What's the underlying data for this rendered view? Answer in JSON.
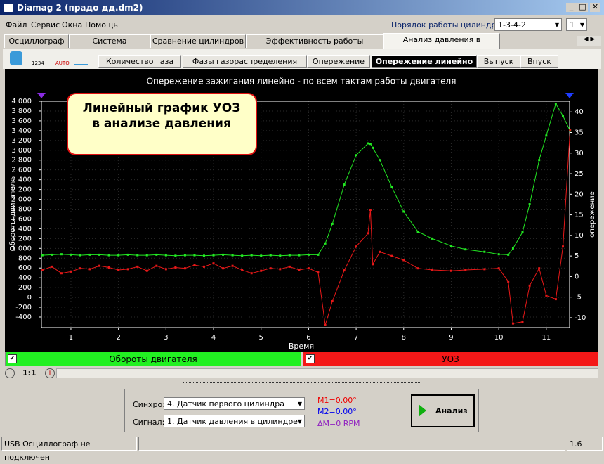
{
  "window": {
    "title": "Diamag 2 (прадо дд.dm2)",
    "menu": [
      "Файл",
      "Сервис",
      "Окна",
      "Помощь"
    ],
    "cylinder_order_label": "Порядок работы цилиндров",
    "cylinder_order": "1-3-4-2",
    "cylinder_count": "1",
    "tabs": [
      "Осциллограф",
      "Система зажигания",
      "Сравнение цилиндров",
      "Эффективность работы цилиндров",
      "Анализ давления в цилиндре"
    ],
    "toolbar_labels": [
      "1234",
      "AUTO"
    ],
    "subtabs": [
      "Количество газа",
      "Фазы газораспределения",
      "Опережение",
      "Опережение линейно",
      "Выпуск",
      "Впуск"
    ],
    "zoom": "1:1",
    "sync_label": "Синхро:",
    "sync_value": "4.  Датчик первого цилиндра",
    "signal_label": "Сигнал:",
    "signal_value": "1.  Датчик давления в цилиндре",
    "markers": [
      "M1=0.00°",
      "M2=0.00°",
      "ΔM=0 RPM"
    ],
    "analyze_button": "Анализ",
    "status": [
      "USB Осциллограф не подключен",
      "1.6"
    ]
  },
  "chart_data": {
    "type": "line",
    "title": "Опережение зажигания линейно - по всем тактам работы двигателя",
    "xlabel": "Время",
    "ylabel": "Обороты двигателя",
    "y2label": "опережение",
    "annotation": [
      "Линейный график УОЗ",
      "в анализе давления"
    ],
    "x": [
      0.4,
      0.6,
      0.8,
      1.0,
      1.2,
      1.4,
      1.6,
      1.8,
      2.0,
      2.2,
      2.4,
      2.6,
      2.8,
      3.0,
      3.2,
      3.4,
      3.6,
      3.8,
      4.0,
      4.2,
      4.4,
      4.6,
      4.8,
      5.0,
      5.2,
      5.4,
      5.6,
      5.8,
      6.0,
      6.2,
      6.35,
      6.5,
      6.75,
      7.0,
      7.25,
      7.3,
      7.35,
      7.5,
      7.75,
      8.0,
      8.3,
      8.6,
      9.0,
      9.3,
      9.7,
      10.0,
      10.2,
      10.3,
      10.5,
      10.65,
      10.85,
      11.0,
      11.2,
      11.35,
      11.5
    ],
    "xlim": [
      0.38,
      11.49
    ],
    "xticks": [
      1,
      2,
      3,
      4,
      5,
      6,
      7,
      8,
      9,
      10,
      11
    ],
    "ylim": [
      -615,
      4000
    ],
    "yticks": [
      {
        "value": 4000,
        "label": "4 000"
      },
      {
        "value": 3800,
        "label": "3 800"
      },
      {
        "value": 3600,
        "label": "3 600"
      },
      {
        "value": 3400,
        "label": "3 400"
      },
      {
        "value": 3200,
        "label": "3 200"
      },
      {
        "value": 3000,
        "label": "3 000"
      },
      {
        "value": 2800,
        "label": "2 800"
      },
      {
        "value": 2600,
        "label": "2 600"
      },
      {
        "value": 2400,
        "label": "2 400"
      },
      {
        "value": 2200,
        "label": "2 200"
      },
      {
        "value": 2000,
        "label": "2 000"
      },
      {
        "value": 1800,
        "label": "1 800"
      },
      {
        "value": 1600,
        "label": "1 600"
      },
      {
        "value": 1400,
        "label": "1 400"
      },
      {
        "value": 1200,
        "label": "1 200"
      },
      {
        "value": 1000,
        "label": "1 000"
      },
      800,
      600,
      400,
      200,
      0,
      -200,
      -400
    ],
    "y2lim": [
      -12.4,
      42.6
    ],
    "y2ticks": [
      40,
      35,
      30,
      25,
      20,
      15,
      10,
      5,
      0,
      -5,
      -10
    ],
    "grid": true,
    "series": [
      {
        "name": "Обороты двигателя",
        "color": "#22e822",
        "values": [
          860,
          870,
          880,
          870,
          860,
          870,
          870,
          860,
          860,
          870,
          860,
          860,
          870,
          860,
          850,
          860,
          860,
          850,
          860,
          870,
          860,
          850,
          860,
          850,
          860,
          850,
          860,
          860,
          870,
          870,
          1100,
          1500,
          2300,
          2900,
          3140,
          3130,
          3050,
          2800,
          2250,
          1750,
          1340,
          1200,
          1050,
          980,
          930,
          880,
          870,
          1000,
          1330,
          1900,
          2800,
          3300,
          3950,
          3700,
          3400
        ]
      },
      {
        "name": "УОЗ",
        "color": "#e81818",
        "axis": "y2",
        "values": [
          1.6,
          2.4,
          0.8,
          1.2,
          2.0,
          1.8,
          2.6,
          2.2,
          1.6,
          1.8,
          2.4,
          1.4,
          2.6,
          1.8,
          2.2,
          2.0,
          2.8,
          2.4,
          3.2,
          2.0,
          2.6,
          1.6,
          0.8,
          1.4,
          2.0,
          1.8,
          2.4,
          1.6,
          2.0,
          1.0,
          -11.8,
          -6,
          1.5,
          7.3,
          10.5,
          16.2,
          3,
          6,
          5,
          4,
          2,
          1.6,
          1.4,
          1.6,
          1.8,
          2.0,
          -1.2,
          -11.4,
          -11.0,
          -2.2,
          2.0,
          -4.6,
          -5.5,
          7.3,
          35.5
        ]
      }
    ]
  }
}
